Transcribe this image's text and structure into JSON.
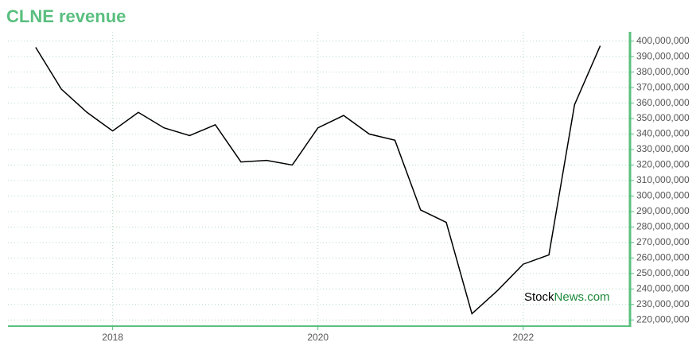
{
  "chart_data": {
    "type": "line",
    "title": "CLNE revenue",
    "watermark": {
      "first": "Stock",
      "second": "News.com"
    },
    "x": [
      2017.25,
      2017.5,
      2017.75,
      2018,
      2018.25,
      2018.5,
      2018.75,
      2019,
      2019.25,
      2019.5,
      2019.75,
      2020,
      2020.25,
      2020.5,
      2020.75,
      2021,
      2021.25,
      2021.5,
      2021.75,
      2022,
      2022.25,
      2022.5,
      2022.75
    ],
    "series": [
      {
        "color": "#000000",
        "values": [
          396000000,
          369000000,
          354000000,
          342000000,
          354000000,
          344000000,
          339000000,
          346000000,
          322000000,
          323000000,
          320000000,
          344000000,
          352000000,
          340000000,
          336000000,
          291000000,
          283000000,
          224000000,
          239000000,
          256000000,
          262000000,
          359000000,
          397000000
        ]
      }
    ],
    "xlim": [
      2016.98,
      2023.04
    ],
    "xticks": [
      2018,
      2020,
      2022
    ],
    "ylim": [
      216000000,
      406000000
    ],
    "yticks": [
      {
        "value": 220000000,
        "label": "220,000,000"
      },
      {
        "value": 230000000,
        "label": "230,000,000"
      },
      {
        "value": 240000000,
        "label": "240,000,000"
      },
      {
        "value": 250000000,
        "label": "250,000,000"
      },
      {
        "value": 260000000,
        "label": "260,000,000"
      },
      {
        "value": 270000000,
        "label": "270,000,000"
      },
      {
        "value": 280000000,
        "label": "280,000,000"
      },
      {
        "value": 290000000,
        "label": "290,000,000"
      },
      {
        "value": 300000000,
        "label": "300,000,000"
      },
      {
        "value": 310000000,
        "label": "310,000,000"
      },
      {
        "value": 320000000,
        "label": "320,000,000"
      },
      {
        "value": 330000000,
        "label": "330,000,000"
      },
      {
        "value": 340000000,
        "label": "340,000,000"
      },
      {
        "value": 350000000,
        "label": "350,000,000"
      },
      {
        "value": 360000000,
        "label": "360,000,000"
      },
      {
        "value": 370000000,
        "label": "370,000,000"
      },
      {
        "value": 380000000,
        "label": "380,000,000"
      },
      {
        "value": 390000000,
        "label": "390,000,000"
      },
      {
        "value": 400000000,
        "label": "400,000,000"
      }
    ],
    "grid": true,
    "axis_color": "#5abf7f"
  }
}
